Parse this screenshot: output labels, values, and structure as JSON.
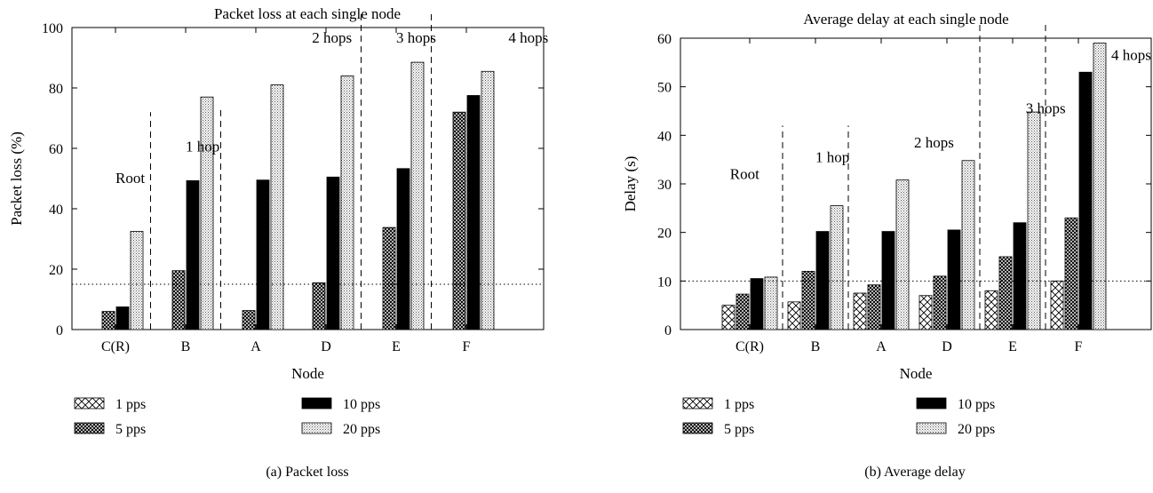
{
  "chart_data": [
    {
      "type": "bar",
      "title": "Packet loss at each single node",
      "xlabel": "Node",
      "ylabel": "Packet loss (%)",
      "ylim": [
        0,
        100
      ],
      "yticks": [
        "0",
        "20",
        "40",
        "60",
        "80",
        "100"
      ],
      "categories": [
        "C(R)",
        "B",
        "A",
        "D",
        "E",
        "F"
      ],
      "series": [
        {
          "name": "1 pps",
          "values": [
            0,
            0,
            0,
            0,
            0,
            0
          ]
        },
        {
          "name": "5 pps",
          "values": [
            6,
            19.5,
            6.3,
            15.5,
            33.8,
            72
          ]
        },
        {
          "name": "10 pps",
          "values": [
            7.5,
            49.3,
            49.5,
            50.5,
            53.3,
            77.5
          ]
        },
        {
          "name": "20 pps",
          "values": [
            32.5,
            77,
            81,
            84,
            88.5,
            85.5
          ]
        }
      ],
      "reference_line": 15,
      "annotations": [
        {
          "text": "Root",
          "x": 0,
          "y": 48.5
        },
        {
          "text": "1 hop",
          "x": 1.0,
          "y": 59
        },
        {
          "text": "2 hops",
          "x": 2.8,
          "y": 95
        },
        {
          "text": "3 hops",
          "x": 4.0,
          "y": 95
        },
        {
          "text": "4 hops",
          "x": 5.6,
          "y": 95
        }
      ],
      "separators": [
        {
          "x": 0.5,
          "y_top": 72
        },
        {
          "x": 1.5,
          "y_top": 73
        },
        {
          "x": 3.5,
          "y_top": 100
        },
        {
          "x": 4.5,
          "y_top": 100
        }
      ],
      "caption": "(a) Packet loss",
      "legend_placement": "bottom"
    },
    {
      "type": "bar",
      "title": "Average delay at each single node",
      "xlabel": "Node",
      "ylabel": "Delay (s)",
      "ylim": [
        0,
        60
      ],
      "yticks": [
        "0",
        "10",
        "20",
        "30",
        "40",
        "50",
        "60"
      ],
      "categories": [
        "C(R)",
        "B",
        "A",
        "D",
        "E",
        "F"
      ],
      "series": [
        {
          "name": "1 pps",
          "values": [
            5,
            5.7,
            7.5,
            7,
            8,
            10
          ]
        },
        {
          "name": "5 pps",
          "values": [
            7.3,
            12,
            9.2,
            11,
            15,
            23
          ]
        },
        {
          "name": "10 pps",
          "values": [
            10.5,
            20.2,
            20.2,
            20.5,
            22,
            53
          ]
        },
        {
          "name": "20 pps",
          "values": [
            10.8,
            25.5,
            30.8,
            34.8,
            44.8,
            59
          ]
        }
      ],
      "reference_line": 10,
      "annotations": [
        {
          "text": "Root",
          "x": -0.3,
          "y": 31
        },
        {
          "text": "1 hop",
          "x": 1.0,
          "y": 34.5
        },
        {
          "text": "2 hops",
          "x": 2.5,
          "y": 37.5
        },
        {
          "text": "3 hops",
          "x": 4.2,
          "y": 44.5
        },
        {
          "text": "4 hops",
          "x": 5.5,
          "y": 55.5
        }
      ],
      "separators": [
        {
          "x": 0.5,
          "y_top": 42
        },
        {
          "x": 1.5,
          "y_top": 42
        },
        {
          "x": 3.5,
          "y_top": 60
        },
        {
          "x": 4.5,
          "y_top": 60
        }
      ],
      "caption": "(b) Average delay",
      "legend_placement": "bottom"
    }
  ]
}
